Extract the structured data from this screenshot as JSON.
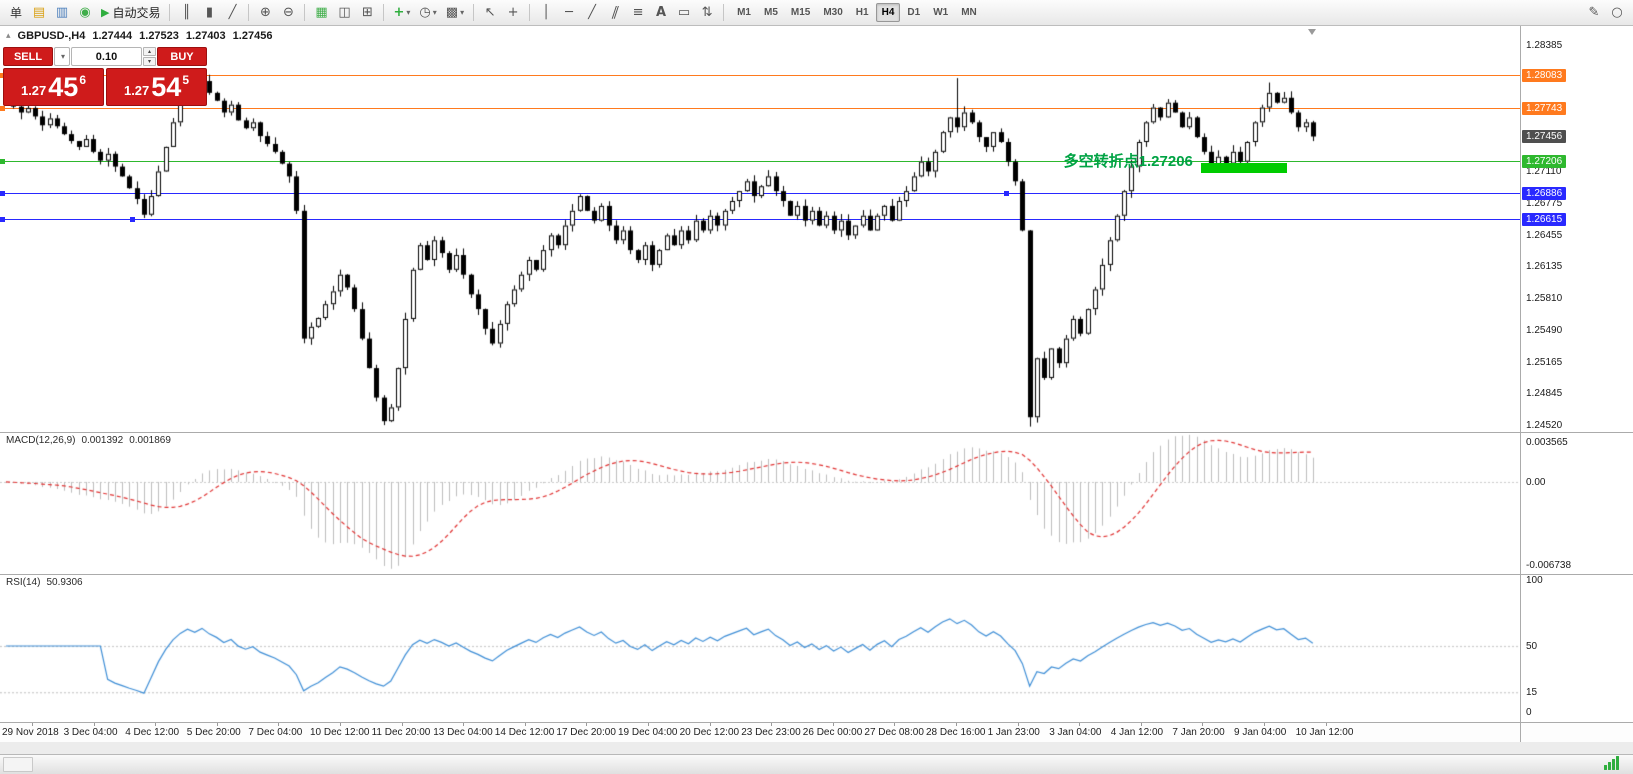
{
  "toolbar": {
    "new_order_label": "单",
    "autotrading_label": "自动交易",
    "timeframes": [
      "M1",
      "M5",
      "M15",
      "M30",
      "H1",
      "H4",
      "D1",
      "W1",
      "MN"
    ],
    "active_timeframe": "H4",
    "icons": {
      "market_watch": "▤",
      "data_window": "▥",
      "navigator": "◉",
      "play": "▶",
      "bars": "║",
      "candles": "▮",
      "line": "╱",
      "zoom_in": "⊕",
      "zoom_out": "⊖",
      "tile": "▦",
      "arrange": "◫",
      "cascade": "⊞",
      "add_indicator": "+",
      "clock": "◷",
      "template": "▩",
      "cursor": "↖",
      "crosshair": "+",
      "vline": "│",
      "hline": "─",
      "trendline": "╱",
      "channel": "∥",
      "fib": "≡",
      "text": "A",
      "label_box": "▭",
      "arrows": "⇅",
      "caret": "▾",
      "pencil": "✎",
      "circle": "○",
      "spin_up": "▴",
      "spin_down": "▾",
      "title_marker": "▴"
    }
  },
  "chart": {
    "symbol_period": "GBPUSD-,H4",
    "open": "1.27444",
    "high": "1.27523",
    "low": "1.27403",
    "close": "1.27456"
  },
  "trade_panel": {
    "sell_label": "SELL",
    "buy_label": "BUY",
    "volume": "0.10",
    "sell_price": {
      "prefix": "1.27",
      "big": "45",
      "sup": "6"
    },
    "buy_price": {
      "prefix": "1.27",
      "big": "54",
      "sup": "5"
    }
  },
  "annotation": {
    "text": "多空转折点1.27206",
    "color": "#00a344",
    "anchor_price": 1.2723
  },
  "levels": [
    {
      "price": 1.28083,
      "color": "#ff7a1e",
      "handles": [
        0
      ]
    },
    {
      "price": 1.27743,
      "color": "#ff7a1e",
      "handles": [
        0
      ]
    },
    {
      "price": 1.27206,
      "color": "#2eb82e",
      "handles": [
        0
      ]
    },
    {
      "price": 1.26886,
      "color": "#2929ff",
      "handles": [
        0,
        1004
      ]
    },
    {
      "price": 1.26615,
      "color": "#2929ff",
      "handles": [
        0,
        130
      ]
    }
  ],
  "highlight_rect": {
    "from_index": 165,
    "to_index": 176,
    "price_top": 1.2719,
    "price_bottom": 1.27085,
    "color": "#00cc00"
  },
  "price_axis": {
    "labels": [
      {
        "text": "1.28385",
        "type": "plain"
      },
      {
        "text": "1.28083",
        "type": "tag",
        "color": "#ff7a1e"
      },
      {
        "text": "1.27743",
        "type": "tag",
        "color": "#ff7a1e"
      },
      {
        "text": "1.27456",
        "type": "tag",
        "color": "#4f4f4f"
      },
      {
        "text": "1.27206",
        "type": "tag",
        "color": "#2eb82e"
      },
      {
        "text": "1.27110",
        "type": "plain"
      },
      {
        "text": "1.26886",
        "type": "tag",
        "color": "#2929ff"
      },
      {
        "text": "1.26775",
        "type": "plain"
      },
      {
        "text": "1.26615",
        "type": "tag",
        "color": "#2929ff"
      },
      {
        "text": "1.26455",
        "type": "plain"
      },
      {
        "text": "1.26135",
        "type": "plain"
      },
      {
        "text": "1.25810",
        "type": "plain"
      },
      {
        "text": "1.25490",
        "type": "plain"
      },
      {
        "text": "1.25165",
        "type": "plain"
      },
      {
        "text": "1.24845",
        "type": "plain"
      },
      {
        "text": "1.24520",
        "type": "plain"
      }
    ]
  },
  "macd": {
    "header_label": "MACD(12,26,9)",
    "value_main": "0.001392",
    "value_signal": "0.001869",
    "axis_labels": [
      "0.003565",
      "0.00",
      "-0.006738"
    ]
  },
  "rsi": {
    "header_label": "RSI(14)",
    "value": "50.9306",
    "axis_labels": [
      "100",
      "50",
      "15",
      "0"
    ],
    "levels": [
      50,
      15
    ]
  },
  "time_axis": {
    "labels": [
      "29 Nov 2018",
      "3 Dec 04:00",
      "4 Dec 12:00",
      "5 Dec 20:00",
      "7 Dec 04:00",
      "10 Dec 12:00",
      "11 Dec 20:00",
      "13 Dec 04:00",
      "14 Dec 12:00",
      "17 Dec 20:00",
      "19 Dec 04:00",
      "20 Dec 12:00",
      "23 Dec 23:00",
      "26 Dec 00:00",
      "27 Dec 08:00",
      "28 Dec 16:00",
      "1 Jan 23:00",
      "3 Jan 04:00",
      "4 Jan 12:00",
      "7 Jan 20:00",
      "9 Jan 04:00",
      "10 Jan 12:00"
    ]
  },
  "colors": {
    "accent_red": "#cf1b1b",
    "bull": "#ffffff",
    "bear": "#000000",
    "outline": "#000000",
    "macd_hist": "#bdbdbd",
    "macd_signal": "#e03232",
    "rsi_line": "#3e8ed6",
    "grid_dotted": "#c9c9c9"
  },
  "chart_data": {
    "type": "candlestick",
    "symbol": "GBPUSD-",
    "timeframe": "H4",
    "ohlc_current": {
      "open": 1.27444,
      "high": 1.27523,
      "low": 1.27403,
      "close": 1.27456
    },
    "price_range": [
      1.2452,
      1.28385
    ],
    "indicators": [
      {
        "name": "MACD",
        "params": [
          12,
          26,
          9
        ],
        "values": [
          0.001392,
          0.001869
        ]
      },
      {
        "name": "RSI",
        "params": [
          14
        ],
        "value": 50.9306
      }
    ],
    "horizontal_levels": [
      1.28083,
      1.27743,
      1.27206,
      1.26886,
      1.26615
    ],
    "closes": [
      1.2782,
      1.2776,
      1.277,
      1.27745,
      1.2766,
      1.2757,
      1.2764,
      1.2756,
      1.2748,
      1.2741,
      1.2735,
      1.2743,
      1.273,
      1.2721,
      1.2728,
      1.2715,
      1.2705,
      1.2693,
      1.2682,
      1.2666,
      1.2685,
      1.271,
      1.2735,
      1.276,
      1.278,
      1.2795,
      1.2788,
      1.2802,
      1.279,
      1.2782,
      1.277,
      1.2778,
      1.2762,
      1.2754,
      1.276,
      1.2746,
      1.2738,
      1.273,
      1.2718,
      1.2705,
      1.267,
      1.254,
      1.2552,
      1.2561,
      1.2575,
      1.2588,
      1.2605,
      1.2592,
      1.257,
      1.254,
      1.251,
      1.248,
      1.2456,
      1.247,
      1.251,
      1.256,
      1.261,
      1.2635,
      1.262,
      1.264,
      1.2627,
      1.261,
      1.2625,
      1.2605,
      1.2585,
      1.257,
      1.255,
      1.2535,
      1.2555,
      1.2575,
      1.259,
      1.2605,
      1.262,
      1.261,
      1.263,
      1.2645,
      1.2635,
      1.2655,
      1.267,
      1.2685,
      1.267,
      1.266,
      1.2675,
      1.2655,
      1.264,
      1.265,
      1.263,
      1.262,
      1.2635,
      1.2615,
      1.263,
      1.2645,
      1.2635,
      1.265,
      1.264,
      1.266,
      1.265,
      1.2665,
      1.2655,
      1.267,
      1.268,
      1.269,
      1.27,
      1.2685,
      1.2695,
      1.2705,
      1.269,
      1.268,
      1.2665,
      1.2675,
      1.266,
      1.267,
      1.2655,
      1.2665,
      1.265,
      1.266,
      1.2645,
      1.2655,
      1.2665,
      1.265,
      1.2665,
      1.2675,
      1.266,
      1.268,
      1.269,
      1.2705,
      1.272,
      1.271,
      1.273,
      1.275,
      1.2765,
      1.2755,
      1.277,
      1.276,
      1.2745,
      1.2735,
      1.275,
      1.274,
      1.272,
      1.27,
      1.265,
      1.246,
      1.252,
      1.25,
      1.253,
      1.2515,
      1.254,
      1.256,
      1.2545,
      1.257,
      1.259,
      1.2615,
      1.264,
      1.2665,
      1.269,
      1.2715,
      1.274,
      1.276,
      1.2775,
      1.2765,
      1.278,
      1.277,
      1.2755,
      1.2765,
      1.2745,
      1.273,
      1.2715,
      1.2725,
      1.2718,
      1.273,
      1.272,
      1.274,
      1.276,
      1.2775,
      1.279,
      1.278,
      1.2785,
      1.277,
      1.2755,
      1.276,
      1.27456
    ],
    "wick_overrides": {
      "27": {
        "h": 1.28083
      },
      "52": {
        "l": 1.2452
      },
      "131": {
        "h": 1.2805
      },
      "141": {
        "l": 1.24505
      },
      "174": {
        "h": 1.28005
      }
    }
  }
}
